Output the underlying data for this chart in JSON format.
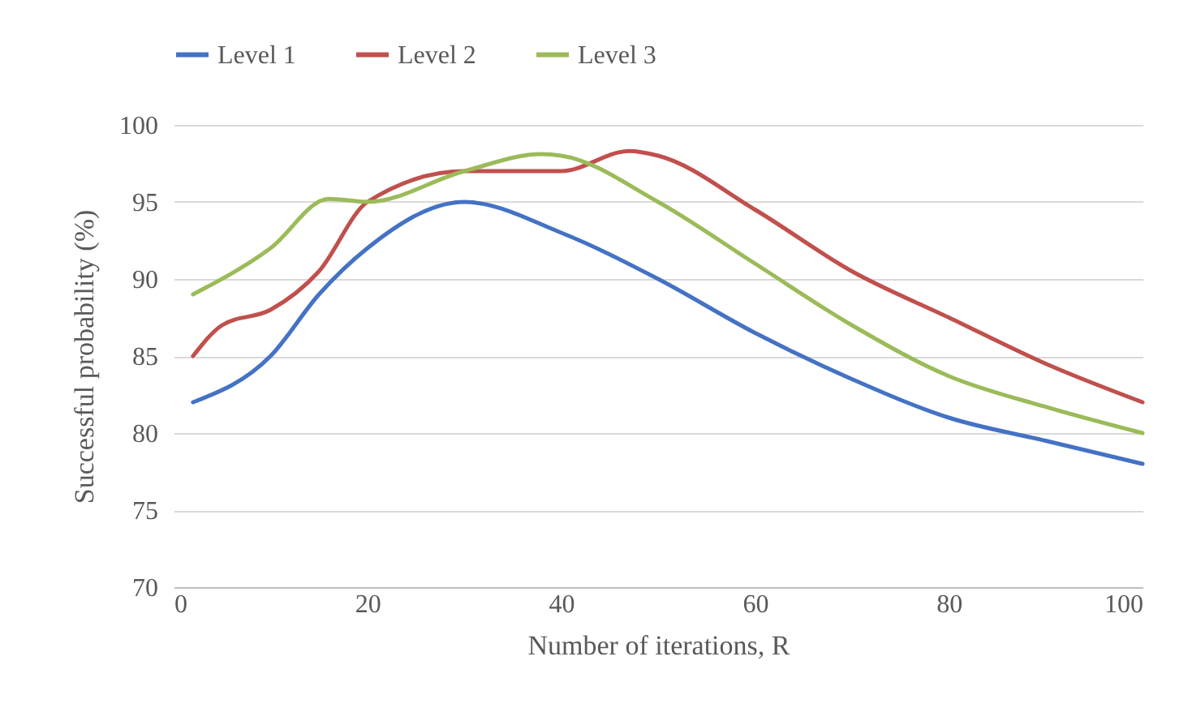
{
  "chart_data": {
    "type": "line",
    "xlabel": "Number of iterations, R",
    "ylabel": "Successful probability (%)",
    "xlim": [
      0,
      100
    ],
    "xticks": [
      0,
      20,
      40,
      60,
      80,
      100
    ],
    "ylim": [
      70,
      100
    ],
    "yticks": [
      70,
      75,
      80,
      85,
      90,
      95,
      100
    ],
    "grid": "y",
    "legend": "top",
    "marker": "none",
    "line_style": "solid",
    "series": [
      {
        "name": "Level 1",
        "color": "#4472c4",
        "x": [
          2,
          10,
          15,
          20,
          30,
          40,
          50,
          60,
          70,
          80,
          90,
          100
        ],
        "values": [
          82,
          85,
          89,
          92,
          95,
          93,
          90,
          86.5,
          83.5,
          81,
          79.5,
          78
        ]
      },
      {
        "name": "Level 2",
        "color": "#c0504d",
        "x": [
          2,
          5,
          10,
          15,
          20,
          30,
          40,
          47,
          50,
          60,
          70,
          80,
          90,
          100
        ],
        "values": [
          85,
          87,
          88,
          90.5,
          95,
          97,
          97,
          98.3,
          98,
          94.5,
          90.5,
          87.5,
          84.5,
          82
        ]
      },
      {
        "name": "Level 3",
        "color": "#9bbb59",
        "x": [
          2,
          10,
          16,
          20,
          30,
          38,
          40,
          50,
          60,
          70,
          80,
          90,
          100
        ],
        "values": [
          89,
          92,
          95.2,
          95,
          97,
          98.1,
          98,
          95,
          91,
          87,
          83.7,
          81.7,
          80
        ]
      }
    ]
  }
}
